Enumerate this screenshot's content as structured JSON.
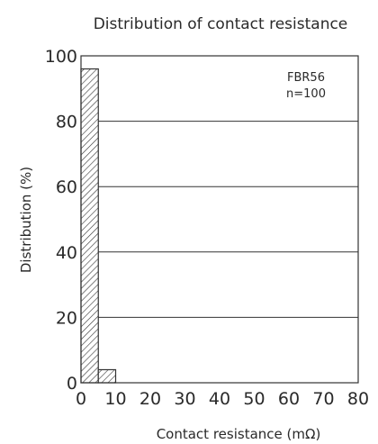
{
  "chart_data": {
    "type": "bar",
    "title": "Distribution of contact resistance",
    "xlabel": "Contact resistance (mΩ)",
    "ylabel": "Distribution (%)",
    "xlim": [
      0,
      80
    ],
    "ylim": [
      0,
      100
    ],
    "x_ticks": [
      "0",
      "10",
      "20",
      "30",
      "40",
      "50",
      "60",
      "70",
      "80"
    ],
    "y_ticks": [
      "0",
      "20",
      "40",
      "60",
      "80",
      "100"
    ],
    "bins": [
      {
        "from": 0,
        "to": 5,
        "value": 96
      },
      {
        "from": 5,
        "to": 10,
        "value": 4
      }
    ],
    "annotation": [
      "FBR56",
      "n=100"
    ],
    "grid": "horizontal",
    "bar_fill": "hatched"
  }
}
